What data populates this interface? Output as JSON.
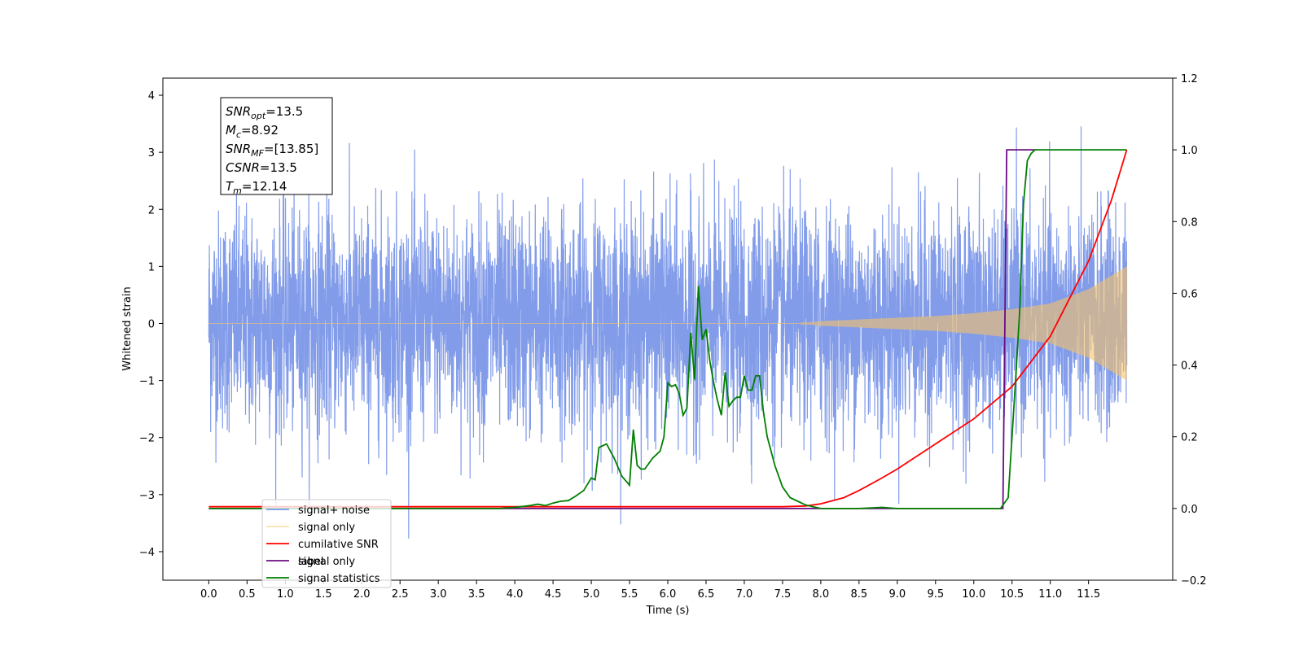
{
  "chart_data": {
    "type": "line",
    "title": "",
    "xlabel": "Time (s)",
    "ylabel": "Whitened strain",
    "ylabel_right": "",
    "xlim": [
      -0.6,
      12.6
    ],
    "ylim": [
      -4.5,
      4.3
    ],
    "ylim_right": [
      -0.2,
      1.2
    ],
    "x_ticks": [
      "0.0",
      "0.5",
      "1.0",
      "1.5",
      "2.0",
      "2.5",
      "3.0",
      "3.5",
      "4.0",
      "4.5",
      "5.0",
      "5.5",
      "6.0",
      "6.5",
      "7.0",
      "7.5",
      "8.0",
      "8.5",
      "9.0",
      "9.5",
      "10.0",
      "10.5",
      "11.0",
      "11.5"
    ],
    "y_ticks": [
      "4",
      "3",
      "2",
      "1",
      "0",
      "−1",
      "−2",
      "−3",
      "−4"
    ],
    "y_ticks_right": [
      "1.2",
      "1.0",
      "0.8",
      "0.6",
      "0.4",
      "0.2",
      "0.0",
      "−0.2"
    ],
    "grid": false,
    "legend_placement": "lower-left",
    "stats_box": [
      "SNRopt=13.5",
      "Mc=8.92",
      "SNRMF=[13.85]",
      "CSNR=13.5",
      "Tm=12.14"
    ],
    "stats_parts": [
      {
        "sym": "SNR",
        "sub": "opt",
        "val": "=13.5"
      },
      {
        "sym": "M",
        "sub": "c",
        "val": "=8.92"
      },
      {
        "sym": "SNR",
        "sub": "MF",
        "val": "=[13.85]"
      },
      {
        "sym": "CSNR",
        "sub": "",
        "val": "=13.5"
      },
      {
        "sym": "T",
        "sub": "m",
        "val": "=12.14"
      }
    ],
    "legend_overlap_text": "signal only",
    "series": [
      {
        "name": "signal+ noise",
        "axis": "left",
        "color": "#7b97e8",
        "x_range": [
          0.0,
          12.0
        ],
        "noise_envelope": [
          -4.1,
          3.9
        ],
        "note": "dense noisy strain"
      },
      {
        "name": "signal only",
        "axis": "left",
        "color": "#f5c36b",
        "x_range": [
          0.0,
          12.0
        ],
        "envelope": {
          "x": [
            0.0,
            7.7,
            8.0,
            8.5,
            9.0,
            9.5,
            10.0,
            10.5,
            11.0,
            11.5,
            12.0
          ],
          "amp": [
            0.0,
            0.0,
            0.04,
            0.07,
            0.1,
            0.13,
            0.18,
            0.25,
            0.35,
            0.6,
            1.0
          ]
        }
      },
      {
        "name": "cumilative SNR",
        "axis": "right",
        "color": "#ff0000",
        "x": [
          0.0,
          7.5,
          7.8,
          8.0,
          8.3,
          8.5,
          8.8,
          9.0,
          9.5,
          10.0,
          10.5,
          11.0,
          11.5,
          11.8,
          12.0
        ],
        "y": [
          0.005,
          0.005,
          0.007,
          0.013,
          0.03,
          0.05,
          0.085,
          0.11,
          0.18,
          0.25,
          0.34,
          0.48,
          0.69,
          0.86,
          1.0
        ]
      },
      {
        "name": "label",
        "axis": "right",
        "color": "#6a0d83",
        "x": [
          0.0,
          10.38,
          10.43,
          10.83
        ],
        "y": [
          0.0,
          0.0,
          1.0,
          1.0
        ]
      },
      {
        "name": "signal statistics",
        "axis": "right",
        "color": "#007f00",
        "x": [
          0.0,
          3.8,
          4.0,
          4.2,
          4.3,
          4.4,
          4.5,
          4.6,
          4.7,
          4.8,
          4.9,
          5.0,
          5.05,
          5.1,
          5.2,
          5.3,
          5.4,
          5.5,
          5.55,
          5.6,
          5.65,
          5.7,
          5.8,
          5.9,
          5.95,
          6.0,
          6.05,
          6.1,
          6.15,
          6.2,
          6.25,
          6.3,
          6.35,
          6.4,
          6.45,
          6.5,
          6.55,
          6.6,
          6.65,
          6.7,
          6.75,
          6.8,
          6.85,
          6.9,
          6.95,
          7.0,
          7.05,
          7.1,
          7.15,
          7.2,
          7.25,
          7.3,
          7.4,
          7.5,
          7.6,
          7.7,
          7.8,
          7.9,
          8.0,
          8.5,
          8.8,
          9.0,
          9.3,
          10.35,
          10.45,
          10.55,
          10.6,
          10.65,
          10.7,
          10.75,
          10.8,
          10.9,
          11.0,
          12.0
        ],
        "y": [
          0.0,
          0.0,
          0.003,
          0.008,
          0.012,
          0.008,
          0.015,
          0.02,
          0.022,
          0.035,
          0.05,
          0.085,
          0.08,
          0.17,
          0.18,
          0.14,
          0.09,
          0.065,
          0.22,
          0.12,
          0.11,
          0.11,
          0.14,
          0.16,
          0.2,
          0.35,
          0.34,
          0.345,
          0.32,
          0.26,
          0.28,
          0.49,
          0.36,
          0.62,
          0.47,
          0.5,
          0.41,
          0.35,
          0.3,
          0.26,
          0.38,
          0.285,
          0.3,
          0.31,
          0.31,
          0.37,
          0.33,
          0.33,
          0.37,
          0.37,
          0.27,
          0.2,
          0.12,
          0.06,
          0.03,
          0.02,
          0.01,
          0.005,
          0.0,
          0.0,
          0.003,
          0.0,
          0.0,
          0.0,
          0.03,
          0.37,
          0.55,
          0.85,
          0.97,
          0.99,
          1.0,
          1.0,
          1.0,
          1.0
        ]
      }
    ]
  }
}
